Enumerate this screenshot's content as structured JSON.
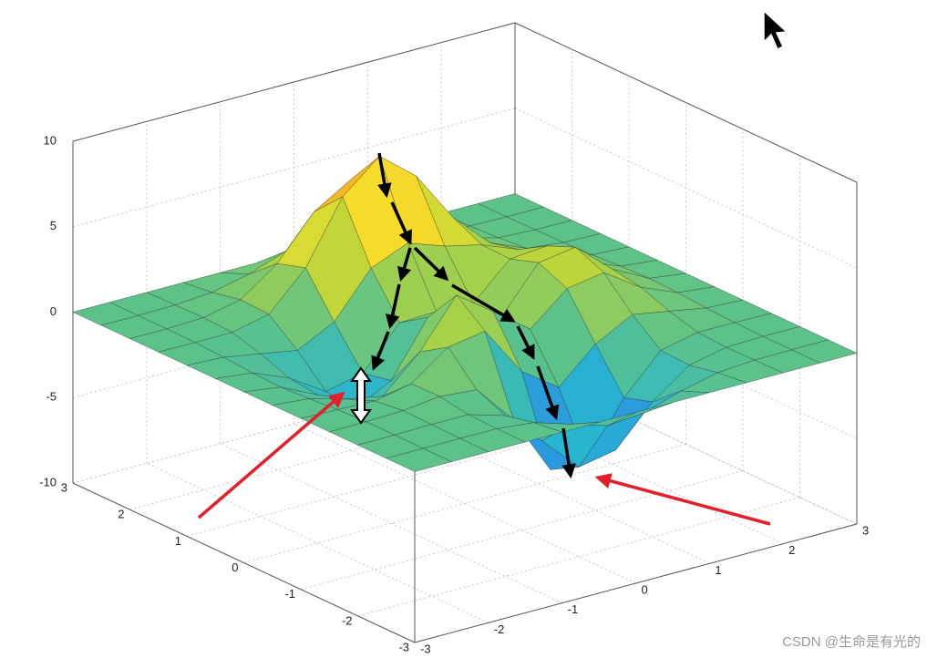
{
  "chart_data": {
    "type": "surface",
    "x": [
      -3,
      -2.5,
      -2,
      -1.5,
      -1,
      -0.5,
      0,
      0.5,
      1,
      1.5,
      2,
      2.5,
      3
    ],
    "y": [
      -3,
      -2.5,
      -2,
      -1.5,
      -1,
      -0.5,
      0,
      0.5,
      1,
      1.5,
      2,
      2.5,
      3
    ],
    "z": [
      [
        0,
        0,
        0,
        0,
        0,
        0,
        0,
        0,
        0,
        0,
        0,
        0,
        0
      ],
      [
        0,
        0,
        0.01,
        0,
        -0.22,
        -0.89,
        -1.55,
        -1.38,
        -0.68,
        -0.18,
        -0.03,
        0,
        0
      ],
      [
        0,
        0.01,
        0.05,
        0.05,
        -0.59,
        -2.64,
        -4.75,
        -4.34,
        -2.1,
        -0.53,
        -0.06,
        0,
        0
      ],
      [
        0,
        0.01,
        0.08,
        0.33,
        0.15,
        -2.18,
        -5.68,
        -5.76,
        -2.63,
        -0.44,
        0.04,
        0.03,
        0
      ],
      [
        0,
        -0.06,
        -0.13,
        0.3,
        1.86,
        2.22,
        -0.72,
        -2.22,
        -0.27,
        0.88,
        0.5,
        0.11,
        0
      ],
      [
        0,
        -0.2,
        -0.8,
        -1.21,
        0.8,
        3.55,
        2,
        0.4,
        2.2,
        2.56,
        1.12,
        0.23,
        0
      ],
      [
        0,
        -0.3,
        -1.33,
        -2.77,
        -1.65,
        1.48,
        0.98,
        0.37,
        2.94,
        3.27,
        1.41,
        0.29,
        0
      ],
      [
        0,
        -0.24,
        -1.12,
        -2.49,
        -2,
        0.38,
        0.46,
        0.37,
        2.38,
        2.56,
        1.09,
        0.22,
        0
      ],
      [
        0,
        -0.11,
        -0.48,
        -0.86,
        0.23,
        2.8,
        3.69,
        2.93,
        2.43,
        1.58,
        0.58,
        0.11,
        0
      ],
      [
        0,
        -0.02,
        -0.01,
        0.47,
        2.61,
        6.19,
        7.99,
        6.25,
        3.25,
        1.19,
        0.29,
        0.05,
        0
      ],
      [
        0,
        0,
        0.08,
        0.55,
        2.09,
        4.55,
        5.85,
        4.56,
        2.21,
        0.68,
        0.13,
        0.02,
        0
      ],
      [
        0,
        0,
        0.04,
        0.2,
        0.68,
        1.45,
        1.86,
        1.45,
        0.68,
        0.2,
        0.04,
        0,
        0
      ],
      [
        0,
        0,
        0,
        0,
        0,
        0,
        0,
        0,
        0,
        0,
        0,
        0,
        0
      ]
    ],
    "xlim": [
      -3,
      3
    ],
    "ylim": [
      -3,
      3
    ],
    "zlim": [
      -10,
      10
    ],
    "xticks": [
      -3,
      -2,
      -1,
      0,
      1,
      2,
      3
    ],
    "yticks": [
      -3,
      -2,
      -1,
      0,
      1,
      2,
      3
    ],
    "zticks": [
      -10,
      -5,
      0,
      5,
      10
    ],
    "grid": true,
    "colormap": [
      "#2b1a8c",
      "#3341c9",
      "#2f7fe8",
      "#27b5d1",
      "#5cc28a",
      "#b5d43c",
      "#f5e12b",
      "#f08522",
      "#d2261c"
    ]
  },
  "watermark": "CSDN @生命是有光的"
}
